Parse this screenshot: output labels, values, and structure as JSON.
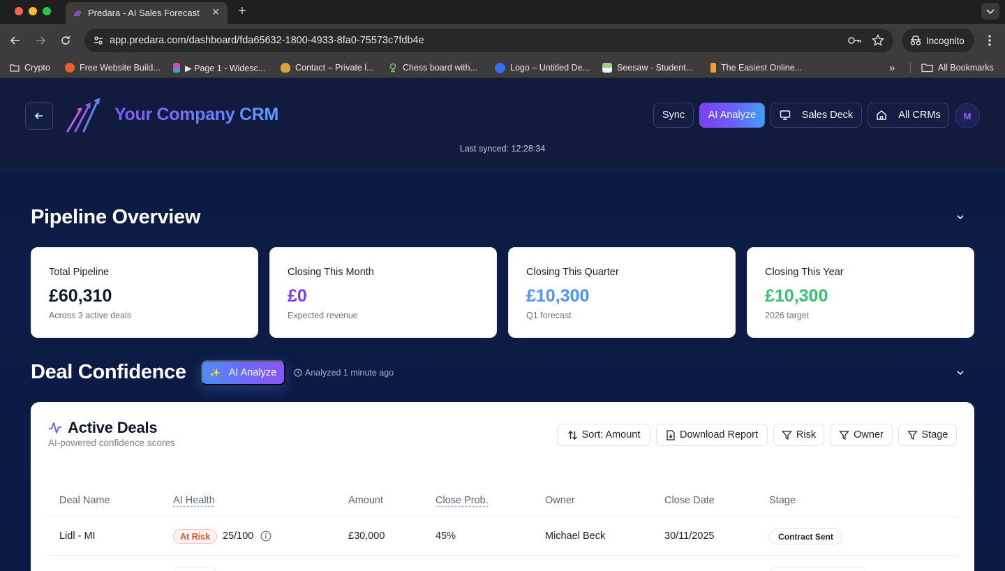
{
  "browser": {
    "tab_title": "Predara - AI Sales Forecasting",
    "tab_close": "✕",
    "new_tab": "+",
    "url": "app.predara.com/dashboard/fda65632-1800-4933-8fa0-75573c7fdb4e",
    "incognito_label": "Incognito",
    "bookmarks": [
      {
        "label": "Crypto",
        "icon": "folder-icon"
      },
      {
        "label": "Free Website Build...",
        "icon": "site-icon",
        "color": "#e8612c"
      },
      {
        "label": "▶ Page 1 - Widesc...",
        "icon": "figma-icon",
        "color": "#f24e1e"
      },
      {
        "label": "Contact – Private l...",
        "icon": "flame-icon",
        "color": "#d9a441"
      },
      {
        "label": "Chess board with...",
        "icon": "chess-icon",
        "color": "#7ac36a"
      },
      {
        "label": "Logo – Untitled De...",
        "icon": "canva-icon",
        "color": "#3b6cf0"
      },
      {
        "label": "Seesaw - Student...",
        "icon": "seesaw-icon",
        "color": "#7cc36b"
      },
      {
        "label": "The Easiest Online...",
        "icon": "flag-icon",
        "color": "#f29b38"
      }
    ],
    "bookmarks_overflow": "»",
    "all_bookmarks": "All Bookmarks"
  },
  "header": {
    "brand": "Your Company CRM",
    "sync": "Sync",
    "ai_analyze": "AI Analyze",
    "sales_deck": "Sales Deck",
    "all_crms": "All CRMs",
    "avatar_initial": "M",
    "last_synced": "Last synced: 12:28:34"
  },
  "pipeline": {
    "title": "Pipeline Overview",
    "cards": [
      {
        "label": "Total Pipeline",
        "value": "£60,310",
        "sub": "Across 3 active deals",
        "color": "#111827"
      },
      {
        "label": "Closing This Month",
        "value": "£0",
        "sub": "Expected revenue",
        "color": "#7c3aed"
      },
      {
        "label": "Closing This Quarter",
        "value": "£10,300",
        "sub": "Q1 forecast",
        "color": "#4f94f0"
      },
      {
        "label": "Closing This Year",
        "value": "£10,300",
        "sub": "2026 target",
        "color": "#3fbf73"
      }
    ]
  },
  "confidence": {
    "title": "Deal Confidence",
    "ai_analyze": "AI Analyze",
    "analyzed": "Analyzed 1 minute ago"
  },
  "deals": {
    "title": "Active Deals",
    "subtitle": "AI-powered confidence scores",
    "toolbar": {
      "sort": "Sort: Amount",
      "download": "Download Report",
      "risk": "Risk",
      "owner": "Owner",
      "stage": "Stage"
    },
    "columns": [
      "Deal Name",
      "AI Health",
      "Amount",
      "Close Prob.",
      "Owner",
      "Close Date",
      "Stage"
    ],
    "rows": [
      {
        "deal_name": "Lidl - MI",
        "health_badge": "At Risk",
        "health_score": "25/100",
        "amount": "£30,000",
        "close_prob": "45%",
        "owner": "Michael Beck",
        "close_date": "30/11/2025",
        "stage": "Contract Sent"
      }
    ]
  }
}
